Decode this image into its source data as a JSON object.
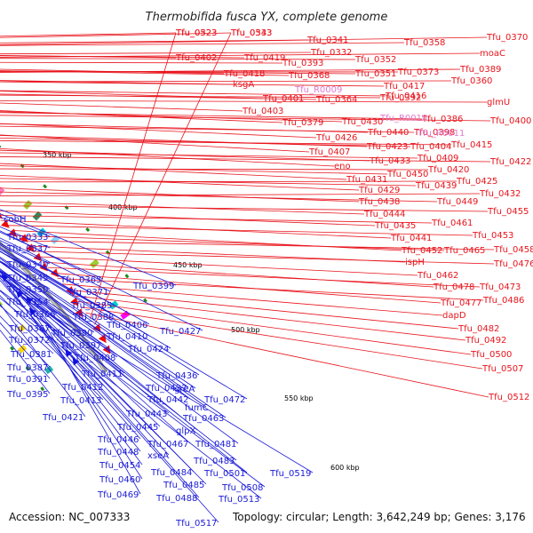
{
  "title": "Thermobifida fusca YX, complete genome",
  "footer": {
    "accession": "Accession: NC_007333",
    "summary": "Topology: circular; Length: 3,642,249 bp; Genes: 3,176"
  },
  "colors": {
    "forward_label": "#e8141c",
    "reverse_label": "#1a1ad8",
    "rna_label": "#e07ad0",
    "backbone": "#8a8a8a"
  },
  "ticks": [
    "350 kbp",
    "400 kbp",
    "450 kbp",
    "500 kbp",
    "550 kbp",
    "600 kbp"
  ],
  "forward_labels": [
    "Tfu_0323",
    "Tfu_0343",
    "Tfu_0341",
    "Tfu_0358",
    "Tfu_0370",
    "Tfu_0402",
    "Tfu_0419",
    "Tfu_0332",
    "Tfu_0352",
    "moaC",
    "Tfu_0393",
    "Tfu_0418",
    "Tfu_0368",
    "Tfu_0351",
    "Tfu_0373",
    "Tfu_0389",
    "ksgA",
    "Tfu_0417",
    "Tfu_0360",
    "Tfu_0401",
    "Tfu_0416",
    "Tfu_0364",
    "Tfu_0392",
    "Tfu_0403",
    "glmU",
    "Tfu_0379",
    "Tfu_0430",
    "Tfu_0386",
    "Tfu_0400",
    "Tfu_0426",
    "Tfu_0440",
    "Tfu_0398",
    "Tfu_0407",
    "Tfu_0423",
    "Tfu_0404",
    "Tfu_0415",
    "eno",
    "Tfu_0433",
    "Tfu_0409",
    "Tfu_0422",
    "Tfu_0431",
    "Tfu_0450",
    "Tfu_0420",
    "Tfu_0429",
    "Tfu_0439",
    "Tfu_0425",
    "Tfu_0438",
    "Tfu_0449",
    "Tfu_0432",
    "Tfu_0444",
    "Tfu_0455",
    "Tfu_0435",
    "Tfu_0461",
    "Tfu_0441",
    "Tfu_0453",
    "Tfu_0452",
    "Tfu_0465",
    "Tfu_0458",
    "ispH",
    "Tfu_0476",
    "Tfu_0462",
    "Tfu_0478",
    "Tfu_0473",
    "Tfu_0477",
    "Tfu_0486",
    "dapD",
    "Tfu_0482",
    "Tfu_0492",
    "Tfu_0500",
    "Tfu_0507",
    "Tfu_0512",
    "Tfu_0523",
    "Tfu_0533"
  ],
  "rna_labels": [
    "Tfu_R0009",
    "Tfu_R0010",
    "Tfu_R0011"
  ],
  "reverse_labels": [
    "cobH",
    "Tfu_0333",
    "Tfu_0337",
    "Tfu_0340",
    "Tfu_0345",
    "Tfu_0365",
    "Tfu_0350",
    "Tfu_0371",
    "Tfu_0354",
    "Tfu_0399",
    "Tfu_0385",
    "Tfu_0366",
    "Tfu_0388",
    "Tfu_0367",
    "Tfu_0390",
    "Tfu_0406",
    "Tfu_0372",
    "Tfu_0410",
    "Tfu_0427",
    "Tfu_0397",
    "Tfu_0381",
    "Tfu_0424",
    "Tfu_0408",
    "Tfu_0387",
    "Tfu_0411",
    "Tfu_0391",
    "Tfu_0412",
    "Tfu_0436",
    "Tfu_0395",
    "Tfu_0413",
    "Tfu_0437",
    "greA",
    "Tfu_0442",
    "Tfu_0472",
    "fumC",
    "Tfu_0421",
    "Tfu_0443",
    "Tfu_0463",
    "Tfu_0445",
    "glpX",
    "Tfu_0446",
    "Tfu_0467",
    "Tfu_0481",
    "Tfu_0448",
    "xseA",
    "Tfu_0454",
    "Tfu_0483",
    "Tfu_0484",
    "Tfu_0501",
    "Tfu_0519",
    "Tfu_0460",
    "Tfu_0485",
    "Tfu_0508",
    "Tfu_0469",
    "Tfu_0488",
    "Tfu_0513",
    "Tfu_0517"
  ]
}
